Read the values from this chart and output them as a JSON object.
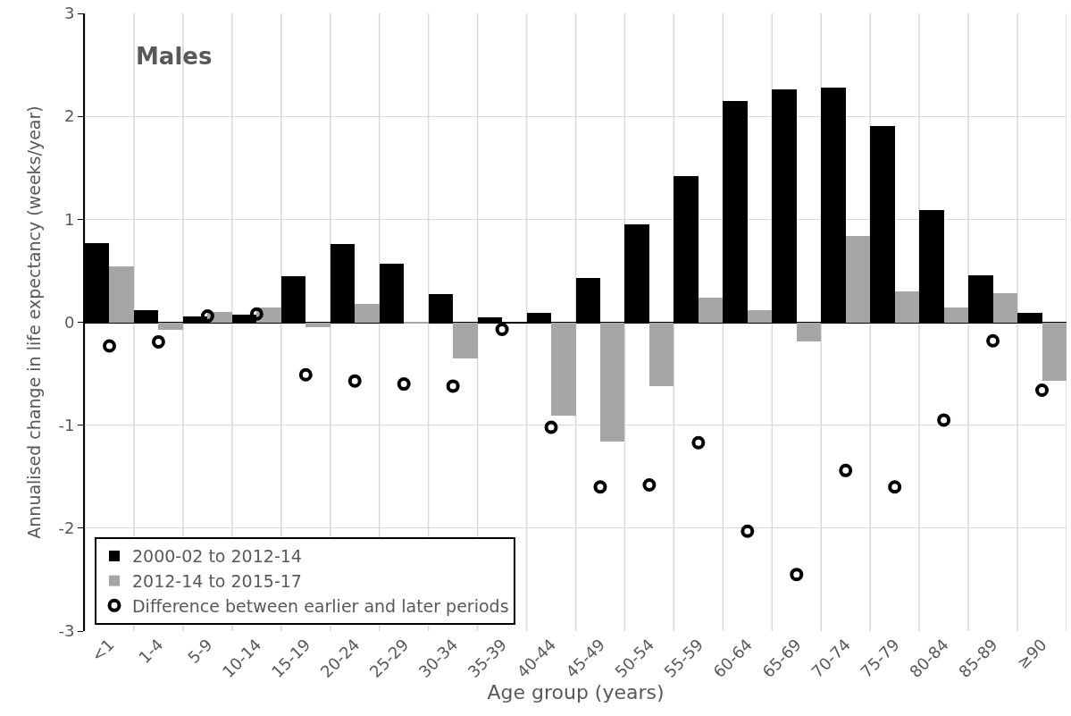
{
  "chart_data": {
    "type": "bar",
    "categories": [
      "<1",
      "1-4",
      "5-9",
      "10-14",
      "15-19",
      "20-24",
      "25-29",
      "30-34",
      "35-39",
      "40-44",
      "45-49",
      "50-54",
      "55-59",
      "60-64",
      "65-69",
      "70-74",
      "75-79",
      "80-84",
      "85-89",
      "≥90"
    ],
    "series": [
      {
        "name": "2000-02 to 2012-14",
        "color": "#000000",
        "values": [
          0.77,
          0.12,
          0.06,
          0.07,
          0.45,
          0.76,
          0.57,
          0.27,
          0.05,
          0.09,
          0.43,
          0.95,
          1.42,
          2.15,
          2.26,
          2.28,
          1.91,
          1.09,
          0.46,
          0.09
        ]
      },
      {
        "name": "2012-14 to 2015-17",
        "color": "#a6a6a6",
        "values": [
          0.54,
          -0.07,
          0.1,
          0.14,
          -0.05,
          0.18,
          -0.01,
          -0.35,
          0,
          -0.91,
          -1.16,
          -0.62,
          0.24,
          0.12,
          -0.19,
          0.84,
          0.3,
          0.14,
          0.28,
          -0.57
        ]
      },
      {
        "name": "Difference between earlier and later periods",
        "type": "scatter",
        "marker": "circle",
        "color": "#000000",
        "values": [
          -0.23,
          -0.19,
          0.06,
          0.08,
          -0.51,
          -0.57,
          -0.6,
          -0.62,
          -0.07,
          -1.02,
          -1.6,
          -1.58,
          -1.17,
          -2.03,
          -2.45,
          -1.44,
          -1.6,
          -0.95,
          -0.18,
          -0.66
        ]
      }
    ],
    "xlabel": "Age group (years)",
    "ylabel": "Annualised change in life expectancy (weeks/year)",
    "ylim": [
      -3,
      3
    ],
    "yticks": [
      -3,
      -2,
      -1,
      0,
      1,
      2,
      3
    ],
    "annotations": [
      "Males"
    ],
    "grid": true,
    "legend": "bottom left"
  }
}
